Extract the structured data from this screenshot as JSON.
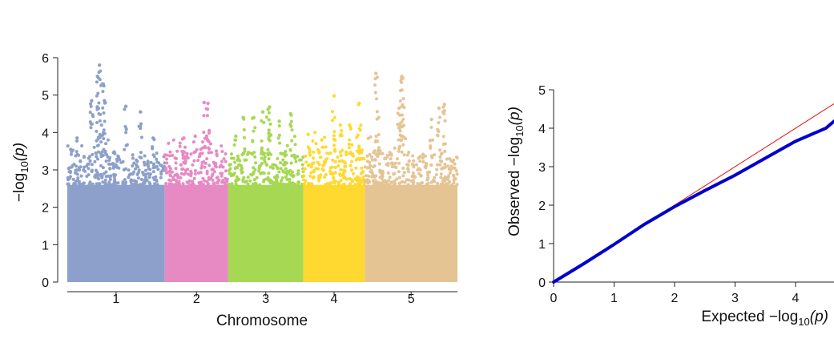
{
  "manhattan": {
    "type": "scatter",
    "xlabel": "Chromosome",
    "ylabel_prefix": "−log",
    "ylabel_sub": "10",
    "ylabel_suffix": "(p)",
    "ylim": [
      0,
      6
    ],
    "yticks": [
      0,
      1,
      2,
      3,
      4,
      5,
      6
    ],
    "chromosomes": [
      {
        "label": "1",
        "color": "#8DA0CB",
        "start": 0.0,
        "end": 1.0,
        "peaks": [
          [
            0.33,
            5.8
          ],
          [
            0.31,
            5.5
          ],
          [
            0.36,
            5.3
          ],
          [
            0.25,
            4.85
          ],
          [
            0.38,
            4.85
          ],
          [
            0.6,
            4.7
          ],
          [
            0.75,
            4.55
          ],
          [
            0.1,
            3.85
          ],
          [
            0.88,
            3.85
          ]
        ]
      },
      {
        "label": "2",
        "color": "#E78AC3",
        "start": 1.0,
        "end": 1.65,
        "peaks": [
          [
            0.62,
            4.8
          ],
          [
            0.68,
            4.78
          ],
          [
            0.7,
            4.05
          ],
          [
            0.3,
            3.85
          ],
          [
            0.48,
            3.9
          ]
        ]
      },
      {
        "label": "3",
        "color": "#A6D854",
        "start": 1.65,
        "end": 2.42,
        "peaks": [
          [
            0.55,
            4.68
          ],
          [
            0.53,
            4.62
          ],
          [
            0.46,
            4.55
          ],
          [
            0.2,
            4.4
          ],
          [
            0.34,
            4.4
          ],
          [
            0.83,
            4.5
          ],
          [
            0.68,
            4.3
          ],
          [
            0.1,
            3.9
          ]
        ]
      },
      {
        "label": "4",
        "color": "#FFD92F",
        "start": 2.42,
        "end": 3.05,
        "peaks": [
          [
            0.5,
            4.98
          ],
          [
            0.91,
            4.78
          ],
          [
            0.6,
            4.2
          ],
          [
            0.75,
            4.2
          ],
          [
            0.08,
            3.95
          ],
          [
            0.3,
            3.8
          ]
        ]
      },
      {
        "label": "5",
        "color": "#E5C494",
        "start": 3.05,
        "end": 4.0,
        "peaks": [
          [
            0.4,
            5.5
          ],
          [
            0.12,
            5.58
          ],
          [
            0.41,
            5.45
          ],
          [
            0.37,
            4.65
          ],
          [
            0.8,
            4.65
          ],
          [
            0.86,
            4.75
          ],
          [
            0.72,
            4.35
          ],
          [
            0.15,
            4.4
          ],
          [
            0.38,
            4.2
          ]
        ]
      }
    ]
  },
  "qq": {
    "type": "scatter",
    "xlabel_prefix": "Expected  −log",
    "xlabel_sub": "10",
    "xlabel_suffix": "(p)",
    "ylabel_prefix": "Observed  −log",
    "ylabel_sub": "10",
    "ylabel_suffix": "(p)",
    "xlim": [
      0,
      4.65
    ],
    "ylim": [
      0,
      5
    ],
    "xticks": [
      0,
      1,
      2,
      3,
      4
    ],
    "yticks": [
      0,
      1,
      2,
      3,
      4,
      5
    ],
    "reference_line_color": "#E41A1C",
    "points_color": "#0000CC",
    "curve": [
      [
        0,
        0
      ],
      [
        0.5,
        0.48
      ],
      [
        1.0,
        0.98
      ],
      [
        1.5,
        1.5
      ],
      [
        2.0,
        1.96
      ],
      [
        2.5,
        2.38
      ],
      [
        3.0,
        2.78
      ],
      [
        3.5,
        3.22
      ],
      [
        4.0,
        3.66
      ],
      [
        4.5,
        4.0
      ],
      [
        4.65,
        4.2
      ]
    ]
  }
}
